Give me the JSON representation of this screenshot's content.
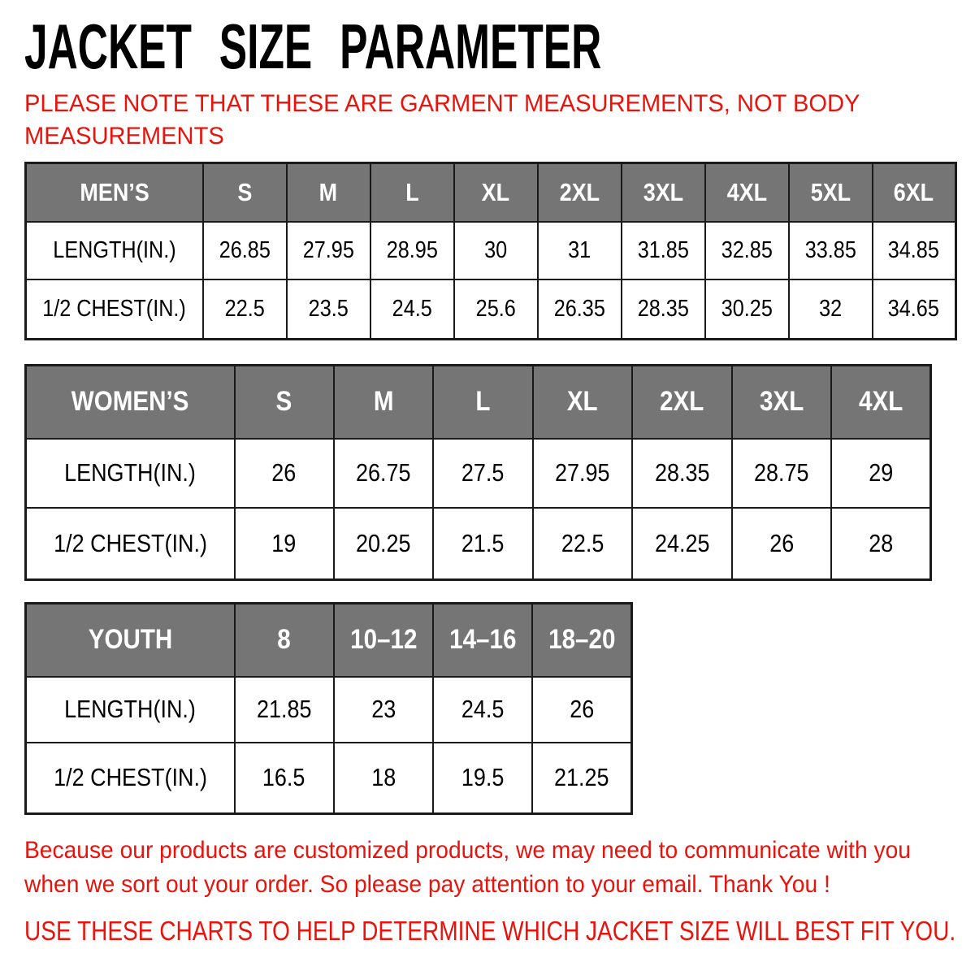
{
  "title": "JACKET SIZE PARAMETER",
  "note": {
    "lines": [
      "PLEASE NOTE THAT THESE ARE GARMENT MEASUREMENTS, NOT BODY",
      "MEASUREMENTS"
    ]
  },
  "tables": [
    {
      "id": "mens",
      "header": [
        "MEN’S",
        "S",
        "M",
        "L",
        "XL",
        "2XL",
        "3XL",
        "4XL",
        "5XL",
        "6XL"
      ],
      "rows": [
        [
          "LENGTH(IN.)",
          "26.85",
          "27.95",
          "28.95",
          "30",
          "31",
          "31.85",
          "32.85",
          "33.85",
          "34.85"
        ],
        [
          "1/2 CHEST(IN.)",
          "22.5",
          "23.5",
          "24.5",
          "25.6",
          "26.35",
          "28.35",
          "30.25",
          "32",
          "34.65"
        ]
      ]
    },
    {
      "id": "womens",
      "header": [
        "WOMEN’S",
        "S",
        "M",
        "L",
        "XL",
        "2XL",
        "3XL",
        "4XL"
      ],
      "rows": [
        [
          "LENGTH(IN.)",
          "26",
          "26.75",
          "27.5",
          "27.95",
          "28.35",
          "28.75",
          "29"
        ],
        [
          "1/2 CHEST(IN.)",
          "19",
          "20.25",
          "21.5",
          "22.5",
          "24.25",
          "26",
          "28"
        ]
      ]
    },
    {
      "id": "youth",
      "header": [
        "YOUTH",
        "8",
        "10–12",
        "14–16",
        "18–20"
      ],
      "rows": [
        [
          "LENGTH(IN.)",
          "21.85",
          "23",
          "24.5",
          "26"
        ],
        [
          "1/2 CHEST(IN.)",
          "16.5",
          "18",
          "19.5",
          "21.25"
        ]
      ]
    }
  ],
  "footer": {
    "paragraph_lines": [
      "Because our products are customized products, we may need to communicate with you",
      "when we sort out your order. So please pay attention to your email. Thank You !"
    ],
    "charts_line": "USE THESE CHARTS TO HELP DETERMINE WHICH JACKET SIZE WILL BEST FIT YOU."
  },
  "colors": {
    "accent_red": "#e8130c",
    "header_gray": "#757575",
    "border_dark": "#1a1a1a",
    "title_black": "#000000"
  }
}
